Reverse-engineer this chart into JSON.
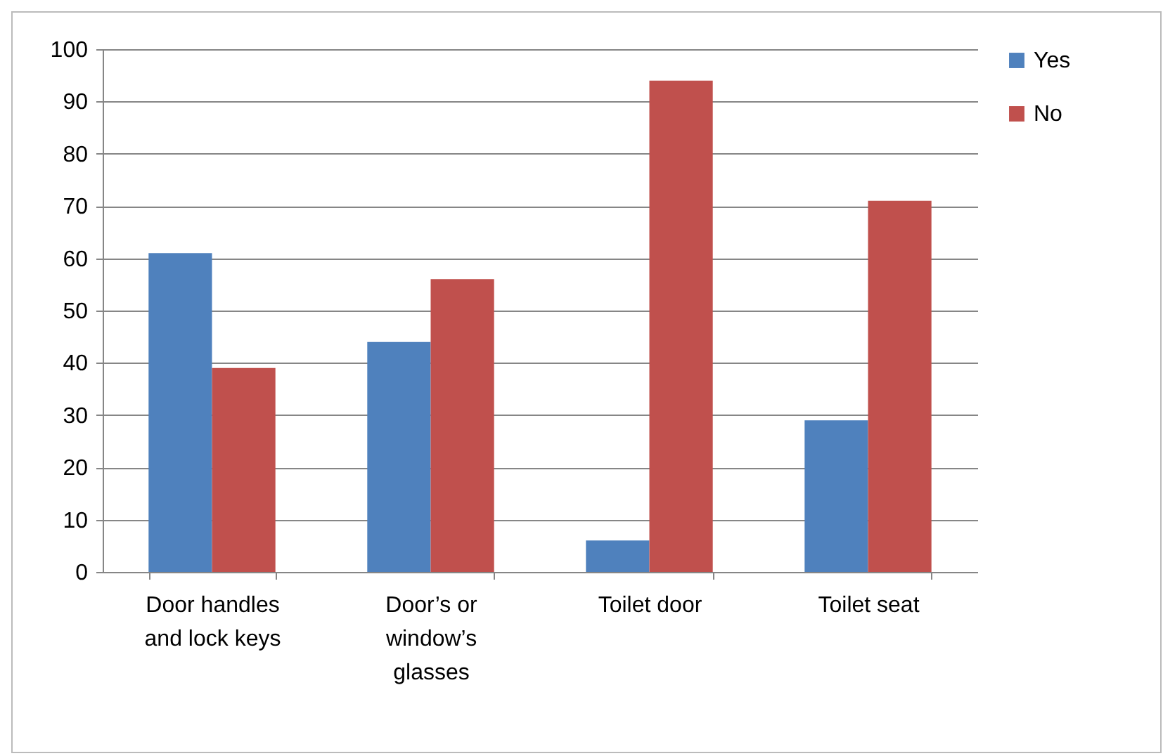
{
  "chart_data": {
    "type": "bar",
    "categories": [
      "Door handles and lock keys",
      "Door’s or window’s glasses",
      "Toilet door",
      "Toilet seat"
    ],
    "series": [
      {
        "name": "Yes",
        "color": "#4f81bd",
        "values": [
          61,
          44,
          6,
          29
        ]
      },
      {
        "name": "No",
        "color": "#c0504d",
        "values": [
          39,
          56,
          94,
          71
        ]
      }
    ],
    "ylim": [
      0,
      100
    ],
    "yticks": [
      0,
      10,
      20,
      30,
      40,
      50,
      60,
      70,
      80,
      90,
      100
    ],
    "grid": "y",
    "legend": "right"
  }
}
